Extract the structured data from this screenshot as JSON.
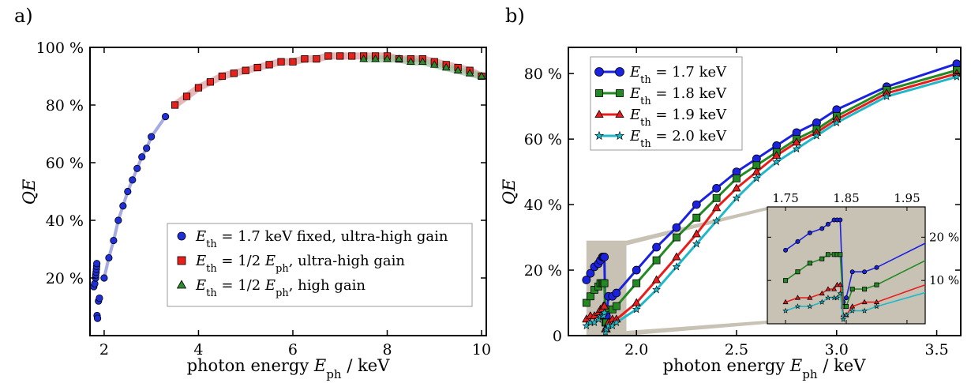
{
  "panel_a_letter": "a)",
  "panel_b_letter": "b)",
  "chart_data": [
    {
      "type": "scatter",
      "panel": "a)",
      "xlabel": "photon energy E_ph / keV",
      "xlabel_parts": {
        "pre": "photon energy ",
        "sym": "E",
        "sub": "ph",
        "post": " / keV"
      },
      "ylabel": "QE",
      "xlim": [
        1.7,
        10.1
      ],
      "ylim": [
        0,
        100
      ],
      "xticks": [
        2,
        4,
        6,
        8,
        10
      ],
      "xtick_labels": [
        "2",
        "4",
        "6",
        "8",
        "10"
      ],
      "yticks": [
        20,
        40,
        60,
        80,
        100
      ],
      "ytick_labels": [
        "20 %",
        "40 %",
        "60 %",
        "80 %",
        "100 %"
      ],
      "legend_position": "bottom-right",
      "series": [
        {
          "name": "E_th = 1.7 keV fixed, ultra-high gain",
          "legend": {
            "sym": "E",
            "sub": "th",
            "text": " = 1.7 keV fixed, ultra-high gain"
          },
          "marker": "circle",
          "color": "#1f2fd8",
          "band_color": "#8a8fd8",
          "x": [
            1.78,
            1.8,
            1.82,
            1.82,
            1.83,
            1.835,
            1.84,
            1.845,
            1.85,
            1.86,
            1.88,
            1.9,
            2.0,
            2.1,
            2.2,
            2.3,
            2.4,
            2.5,
            2.6,
            2.7,
            2.8,
            2.9,
            3.0,
            3.3
          ],
          "y": [
            17,
            18,
            20,
            21,
            22,
            23,
            24,
            25,
            7,
            6,
            12,
            13,
            20,
            27,
            33,
            40,
            45,
            50,
            54,
            58,
            62,
            65,
            69,
            76
          ]
        },
        {
          "name": "E_th = 1/2 E_ph, ultra-high gain",
          "legend": {
            "sym": "E",
            "sub": "th",
            "text": " = 1/2 ",
            "sym2": "E",
            "sub2": "ph",
            "text2": ", ultra-high gain"
          },
          "marker": "square",
          "color": "#e8201c",
          "band_color": "#e0a0a0",
          "x": [
            3.5,
            3.75,
            4.0,
            4.25,
            4.5,
            4.75,
            5.0,
            5.25,
            5.5,
            5.75,
            6.0,
            6.25,
            6.5,
            6.75,
            7.0,
            7.25,
            7.5,
            7.75,
            8.0,
            8.25,
            8.5,
            8.75,
            9.0,
            9.25,
            9.5,
            9.75,
            10.0
          ],
          "y": [
            80,
            83,
            86,
            88,
            90,
            91,
            92,
            93,
            94,
            95,
            95,
            96,
            96,
            97,
            97,
            97,
            97,
            97,
            97,
            96,
            96,
            96,
            95,
            94,
            93,
            92,
            90
          ]
        },
        {
          "name": "E_th = 1/2 E_ph, high gain",
          "legend": {
            "sym": "E",
            "sub": "th",
            "text": " = 1/2 ",
            "sym2": "E",
            "sub2": "ph",
            "text2": ", high gain"
          },
          "marker": "triangle",
          "color": "#2e8b2e",
          "band_color": "#9bc49b",
          "x": [
            7.5,
            7.75,
            8.0,
            8.25,
            8.5,
            8.75,
            9.0,
            9.25,
            9.5,
            9.75,
            10.0
          ],
          "y": [
            96,
            96,
            96,
            96,
            95,
            95,
            94,
            93,
            92,
            91,
            90
          ]
        }
      ]
    },
    {
      "type": "line",
      "panel": "b)",
      "xlabel": "photon energy E_ph / keV",
      "xlabel_parts": {
        "pre": "photon energy ",
        "sym": "E",
        "sub": "ph",
        "post": " / keV"
      },
      "ylabel": "QE",
      "xlim": [
        1.66,
        3.62
      ],
      "ylim": [
        0,
        88
      ],
      "xticks": [
        2.0,
        2.5,
        3.0,
        3.5
      ],
      "xtick_labels": [
        "2.0",
        "2.5",
        "3.0",
        "3.5"
      ],
      "yticks": [
        0,
        20,
        40,
        60,
        80
      ],
      "ytick_labels": [
        "0",
        "20 %",
        "40 %",
        "60 %",
        "80 %"
      ],
      "legend_position": "top-left",
      "x": [
        1.75,
        1.77,
        1.79,
        1.81,
        1.82,
        1.83,
        1.835,
        1.84,
        1.845,
        1.85,
        1.86,
        1.88,
        1.9,
        2.0,
        2.1,
        2.2,
        2.3,
        2.4,
        2.5,
        2.6,
        2.7,
        2.8,
        2.9,
        3.0,
        3.25,
        3.6
      ],
      "series": [
        {
          "name": "E_th = 1.7 keV",
          "legend": {
            "sym": "E",
            "sub": "th",
            "text": " = 1.7 keV"
          },
          "marker": "circle",
          "color": "#1a22e0",
          "y": [
            17,
            19,
            21,
            22,
            23,
            24,
            24,
            24,
            5,
            6,
            12,
            12,
            13,
            20,
            27,
            33,
            40,
            45,
            50,
            54,
            58,
            62,
            65,
            69,
            76,
            83
          ]
        },
        {
          "name": "E_th = 1.8 keV",
          "legend": {
            "sym": "E",
            "sub": "th",
            "text": " = 1.8 keV"
          },
          "marker": "square",
          "color": "#238a23",
          "y": [
            10,
            12,
            14,
            15,
            16,
            16,
            16,
            16,
            4,
            4,
            8,
            8,
            9,
            16,
            23,
            30,
            36,
            42,
            48,
            52,
            56,
            60,
            63,
            67,
            75,
            81
          ]
        },
        {
          "name": "E_th = 1.9 keV",
          "legend": {
            "sym": "E",
            "sub": "th",
            "text": " = 1.9 keV"
          },
          "marker": "triangle",
          "color": "#e81c1c",
          "y": [
            5,
            6,
            6,
            7,
            8,
            8,
            9,
            9,
            2,
            2,
            4,
            5,
            5,
            10,
            17,
            24,
            31,
            39,
            45,
            50,
            55,
            59,
            62,
            66,
            74,
            80
          ]
        },
        {
          "name": "E_th = 2.0 keV",
          "legend": {
            "sym": "E",
            "sub": "th",
            "text": " = 2.0 keV"
          },
          "marker": "star",
          "color": "#20b8c8",
          "y": [
            3,
            4,
            4,
            5,
            6,
            6,
            6,
            7,
            1,
            2,
            3,
            3,
            4,
            8,
            14,
            21,
            28,
            35,
            42,
            48,
            53,
            57,
            61,
            65,
            73,
            79
          ]
        }
      ],
      "highlight_region": {
        "x": [
          1.75,
          1.95
        ],
        "y": [
          0,
          29
        ]
      },
      "inset": {
        "xlim": [
          1.72,
          1.98
        ],
        "ylim": [
          0,
          27
        ],
        "xticks": [
          1.75,
          1.85,
          1.95
        ],
        "xtick_labels": [
          "1.75",
          "1.85",
          "1.95"
        ],
        "yticks": [
          10,
          20
        ],
        "ytick_labels": [
          "10 %",
          "20 %"
        ],
        "x": [
          1.75,
          1.77,
          1.79,
          1.81,
          1.82,
          1.83,
          1.835,
          1.84,
          1.845,
          1.85,
          1.86,
          1.88,
          1.9,
          2.0
        ],
        "series": [
          {
            "color": "#1a22e0",
            "marker": "circle",
            "y": [
              17,
              19,
              21,
              22,
              23,
              24,
              24,
              24,
              5,
              6,
              12,
              12,
              13,
              20
            ]
          },
          {
            "color": "#238a23",
            "marker": "square",
            "y": [
              10,
              12,
              14,
              15,
              16,
              16,
              16,
              16,
              4,
              4,
              8,
              8,
              9,
              16
            ]
          },
          {
            "color": "#e81c1c",
            "marker": "triangle",
            "y": [
              5,
              6,
              6,
              7,
              8,
              8,
              9,
              9,
              2,
              2,
              4,
              5,
              5,
              10
            ]
          },
          {
            "color": "#20b8c8",
            "marker": "star",
            "y": [
              3,
              4,
              4,
              5,
              6,
              6,
              6,
              7,
              1,
              2,
              3,
              3,
              4,
              8
            ]
          }
        ]
      }
    }
  ]
}
